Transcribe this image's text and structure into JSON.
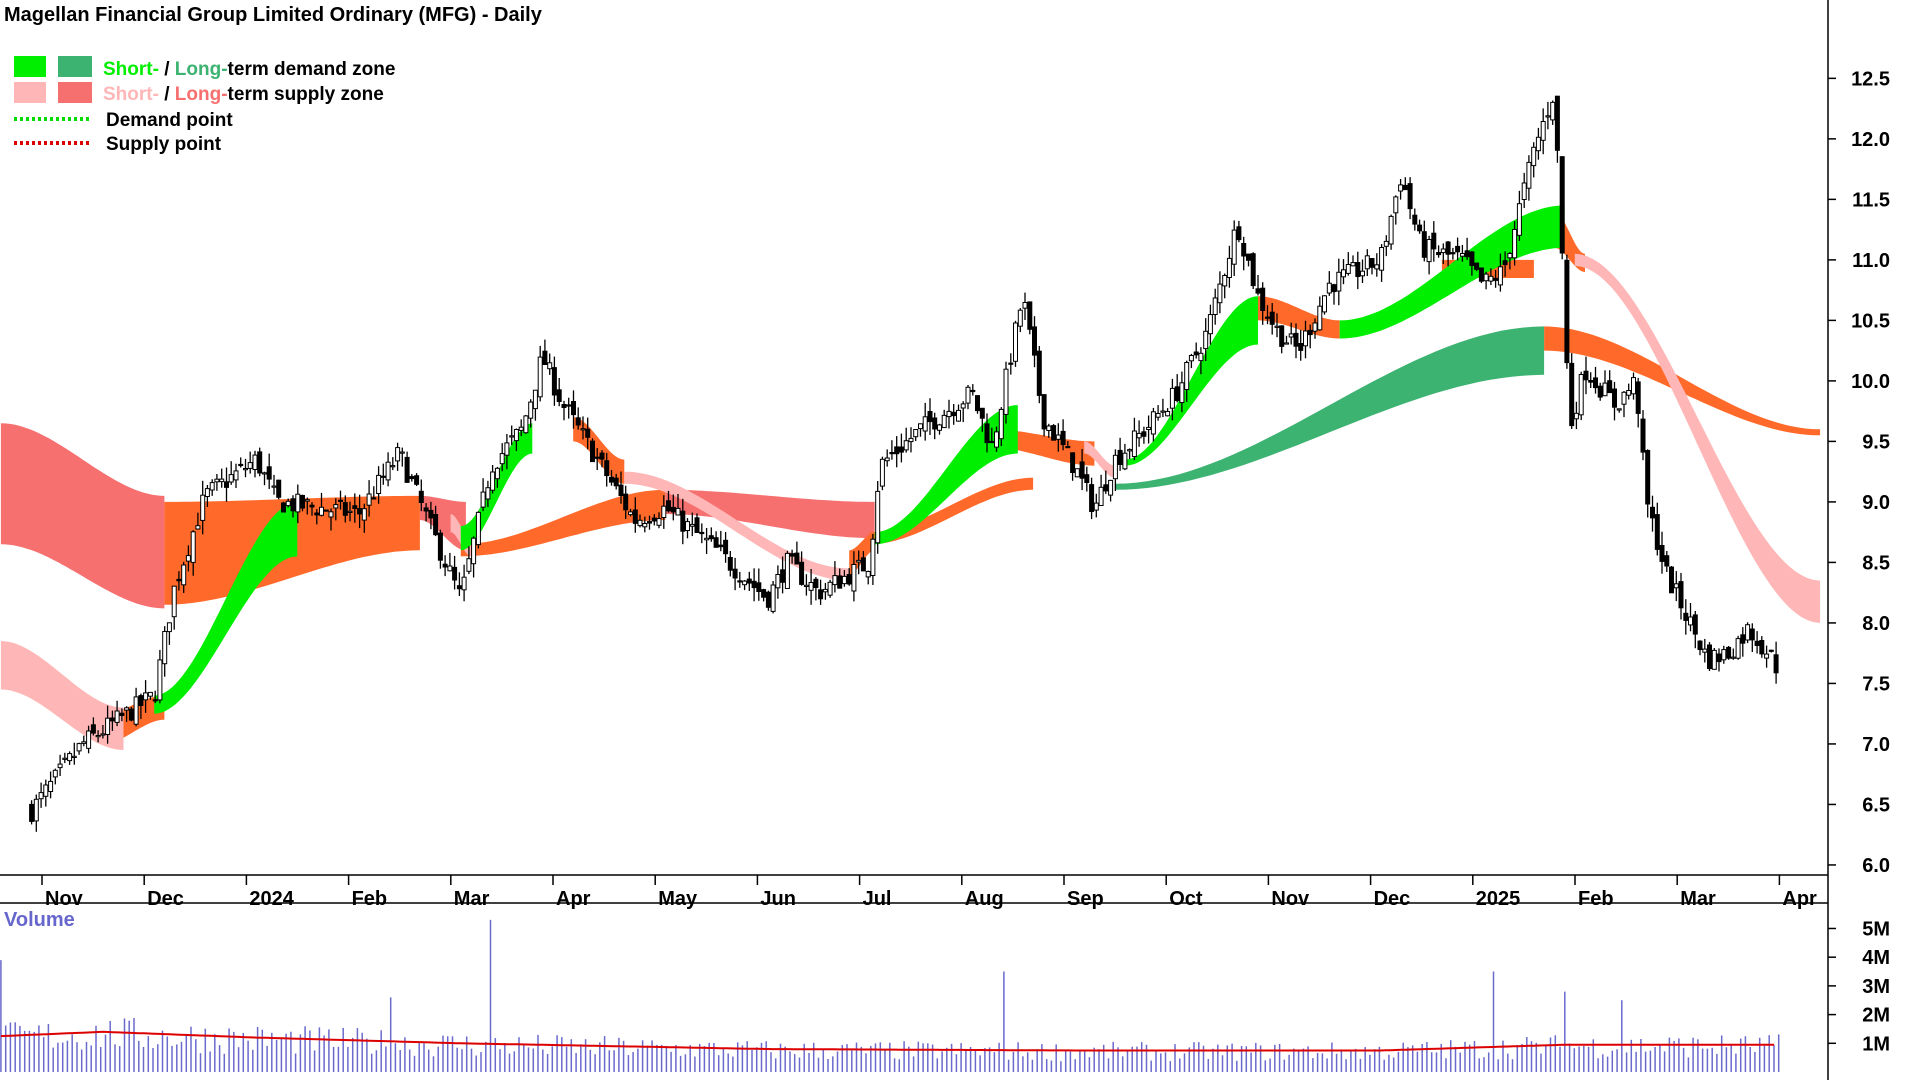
{
  "chart_data": {
    "type": "candlestick",
    "title": "Magellan Financial Group Limited Ordinary (MFG) - Daily",
    "legend": {
      "entries": [
        {
          "short_label": "Short-",
          "separator": " / ",
          "long_label": "Long-",
          "suffix": "term demand zone",
          "short_color": "#00ee00",
          "long_color": "#3cb371",
          "text_color": "#000000"
        },
        {
          "short_label": "Short-",
          "separator": " / ",
          "long_label": "Long-",
          "suffix": "term supply zone",
          "short_color": "#ffb6b6",
          "long_color": "#f77070",
          "text_color": "#000000"
        },
        {
          "label": "Demand point",
          "color": "#00dd00",
          "style": "dotted"
        },
        {
          "label": "Supply point",
          "color": "#dd0000",
          "style": "dotted"
        }
      ],
      "position": "top-left"
    },
    "price_axis": {
      "ticks": [
        "6.0",
        "6.5",
        "7.0",
        "7.5",
        "8.0",
        "8.5",
        "9.0",
        "9.5",
        "10.0",
        "10.5",
        "11.0",
        "11.5",
        "12.0",
        "12.5"
      ],
      "range": [
        5.95,
        12.85
      ],
      "side": "right"
    },
    "x_axis": {
      "labels": [
        "Nov",
        "Dec",
        "2024",
        "Feb",
        "Mar",
        "Apr",
        "May",
        "Jun",
        "Jul",
        "Aug",
        "Sep",
        "Oct",
        "Nov",
        "Dec",
        "2025",
        "Feb",
        "Mar",
        "Apr"
      ],
      "label_months_since_nov_2023": [
        0,
        1,
        2,
        3,
        4,
        5,
        6,
        7,
        8,
        9,
        10,
        11,
        12,
        13,
        14,
        15,
        16,
        17
      ]
    },
    "price_key_points": [
      {
        "month": -0.2,
        "close": 6.45
      },
      {
        "month": 0.3,
        "close": 7.0
      },
      {
        "month": 1.0,
        "close": 7.4
      },
      {
        "month": 1.2,
        "close": 8.3
      },
      {
        "month": 1.5,
        "close": 9.05
      },
      {
        "month": 2.0,
        "close": 9.35
      },
      {
        "month": 2.2,
        "close": 9.0
      },
      {
        "month": 3.0,
        "close": 8.9
      },
      {
        "month": 3.4,
        "close": 9.4
      },
      {
        "month": 3.8,
        "close": 8.6
      },
      {
        "month": 4.0,
        "close": 8.2
      },
      {
        "month": 4.3,
        "close": 9.3
      },
      {
        "month": 4.6,
        "close": 9.6
      },
      {
        "month": 4.8,
        "close": 10.2
      },
      {
        "month": 5.0,
        "close": 9.8
      },
      {
        "month": 5.3,
        "close": 9.4
      },
      {
        "month": 5.7,
        "close": 8.85
      },
      {
        "month": 6.0,
        "close": 8.95
      },
      {
        "month": 6.5,
        "close": 8.6
      },
      {
        "month": 7.0,
        "close": 8.2
      },
      {
        "month": 7.2,
        "close": 8.5
      },
      {
        "month": 7.5,
        "close": 8.25
      },
      {
        "month": 8.0,
        "close": 8.5
      },
      {
        "month": 8.1,
        "close": 9.3
      },
      {
        "month": 8.5,
        "close": 9.6
      },
      {
        "month": 9.0,
        "close": 9.9
      },
      {
        "month": 9.2,
        "close": 9.45
      },
      {
        "month": 9.5,
        "close": 10.7
      },
      {
        "month": 9.7,
        "close": 9.7
      },
      {
        "month": 10.0,
        "close": 9.3
      },
      {
        "month": 10.2,
        "close": 8.95
      },
      {
        "month": 10.4,
        "close": 9.35
      },
      {
        "month": 10.7,
        "close": 9.6
      },
      {
        "month": 11.0,
        "close": 9.9
      },
      {
        "month": 11.3,
        "close": 10.4
      },
      {
        "month": 11.6,
        "close": 11.3
      },
      {
        "month": 11.8,
        "close": 10.7
      },
      {
        "month": 12.0,
        "close": 10.4
      },
      {
        "month": 12.2,
        "close": 10.25
      },
      {
        "month": 12.5,
        "close": 10.8
      },
      {
        "month": 13.0,
        "close": 11.0
      },
      {
        "month": 13.2,
        "close": 11.7
      },
      {
        "month": 13.4,
        "close": 11.1
      },
      {
        "month": 13.8,
        "close": 11.0
      },
      {
        "month": 14.0,
        "close": 10.8
      },
      {
        "month": 14.2,
        "close": 10.9
      },
      {
        "month": 14.5,
        "close": 11.9
      },
      {
        "month": 14.7,
        "close": 12.4
      },
      {
        "month": 14.78,
        "close": 11.0
      },
      {
        "month": 14.85,
        "close": 9.6
      },
      {
        "month": 15.0,
        "close": 10.1
      },
      {
        "month": 15.3,
        "close": 9.8
      },
      {
        "month": 15.5,
        "close": 10.0
      },
      {
        "month": 15.6,
        "close": 9.0
      },
      {
        "month": 15.8,
        "close": 8.4
      },
      {
        "month": 16.0,
        "close": 8.05
      },
      {
        "month": 16.2,
        "close": 7.7
      },
      {
        "month": 16.4,
        "close": 7.75
      },
      {
        "month": 16.6,
        "close": 7.95
      },
      {
        "month": 16.8,
        "close": 7.75
      },
      {
        "month": 16.9,
        "close": 7.6
      }
    ],
    "zones": {
      "long_supply": [
        {
          "from": -0.5,
          "to": 1.1,
          "top": [
            9.65,
            9.05
          ],
          "bottom": [
            8.65,
            8.12
          ]
        },
        {
          "from": 3.6,
          "to": 4.05,
          "top": [
            9.05,
            9.0
          ],
          "bottom": [
            8.85,
            8.6
          ]
        },
        {
          "from": 6.0,
          "to": 8.05,
          "top": [
            9.1,
            9.0
          ],
          "bottom": [
            8.9,
            8.7
          ]
        }
      ],
      "short_supply": [
        {
          "from": -0.5,
          "to": 0.7,
          "top": [
            7.85,
            7.3
          ],
          "bottom": [
            7.45,
            6.95
          ]
        },
        {
          "from": 3.9,
          "to": 4.1,
          "top": [
            8.9,
            8.7
          ],
          "bottom": [
            8.75,
            8.55
          ]
        },
        {
          "from": 5.6,
          "to": 7.8,
          "top": [
            9.25,
            8.45
          ],
          "bottom": [
            9.15,
            8.35
          ]
        },
        {
          "from": 10.1,
          "to": 10.4,
          "top": [
            9.5,
            9.3
          ],
          "bottom": [
            9.4,
            9.2
          ]
        },
        {
          "from": 14.9,
          "to": 17.3,
          "top": [
            11.05,
            8.35
          ],
          "bottom": [
            10.95,
            8.0
          ]
        }
      ],
      "long_demand": [
        {
          "from": 10.4,
          "to": 14.6,
          "top": [
            9.15,
            10.45
          ],
          "bottom": [
            9.1,
            10.05
          ]
        }
      ],
      "short_demand": [
        {
          "from": 1.0,
          "to": 2.4,
          "top": [
            7.4,
            9.0
          ],
          "bottom": [
            7.25,
            8.55
          ]
        },
        {
          "from": 4.0,
          "to": 4.7,
          "top": [
            8.8,
            9.65
          ],
          "bottom": [
            8.6,
            9.4
          ]
        },
        {
          "from": 8.05,
          "to": 9.45,
          "top": [
            8.75,
            9.8
          ],
          "bottom": [
            8.65,
            9.4
          ]
        },
        {
          "from": 10.5,
          "to": 11.8,
          "top": [
            9.35,
            10.7
          ],
          "bottom": [
            9.3,
            10.3
          ]
        },
        {
          "from": 12.6,
          "to": 14.8,
          "top": [
            10.5,
            11.45
          ],
          "bottom": [
            10.35,
            11.1
          ]
        }
      ],
      "long_demand_or_supply_orange": [
        {
          "from": 0.5,
          "to": 1.1,
          "top": [
            7.25,
            7.4
          ],
          "bottom": [
            7.0,
            7.2
          ]
        },
        {
          "from": 1.1,
          "to": 3.6,
          "top": [
            9.0,
            9.05
          ],
          "bottom": [
            8.15,
            8.6
          ]
        },
        {
          "from": 4.0,
          "to": 6.0,
          "top": [
            8.65,
            9.1
          ],
          "bottom": [
            8.55,
            8.85
          ]
        },
        {
          "from": 5.1,
          "to": 5.6,
          "top": [
            9.7,
            9.35
          ],
          "bottom": [
            9.5,
            9.15
          ]
        },
        {
          "from": 7.8,
          "to": 8.05,
          "top": [
            8.6,
            8.75
          ],
          "bottom": [
            8.4,
            8.6
          ]
        },
        {
          "from": 8.0,
          "to": 9.6,
          "top": [
            8.75,
            9.2
          ],
          "bottom": [
            8.65,
            9.1
          ]
        },
        {
          "from": 9.2,
          "to": 10.2,
          "top": [
            9.6,
            9.5
          ],
          "bottom": [
            9.45,
            9.3
          ]
        },
        {
          "from": 11.8,
          "to": 12.6,
          "top": [
            10.7,
            10.5
          ],
          "bottom": [
            10.5,
            10.35
          ]
        },
        {
          "from": 13.6,
          "to": 14.5,
          "top": [
            11.0,
            11.0
          ],
          "bottom": [
            10.85,
            10.85
          ]
        },
        {
          "from": 14.7,
          "to": 15.0,
          "top": [
            11.4,
            11.05
          ],
          "bottom": [
            11.1,
            10.9
          ]
        },
        {
          "from": 14.6,
          "to": 17.3,
          "top": [
            10.45,
            9.6
          ],
          "bottom": [
            10.25,
            9.55
          ]
        }
      ]
    },
    "volume_panel": {
      "title": "Volume",
      "title_color": "#6666cc",
      "ticks": [
        "1M",
        "2M",
        "3M",
        "4M",
        "5M"
      ],
      "range": [
        0,
        5.4
      ],
      "bar_color": "#6a6acd",
      "ma_color": "#dd0000",
      "spikes_M": [
        {
          "month": -0.48,
          "value": 3.9
        },
        {
          "month": 3.3,
          "value": 2.6
        },
        {
          "month": 4.3,
          "value": 5.3
        },
        {
          "month": 9.3,
          "value": 3.5
        },
        {
          "month": 14.1,
          "value": 3.5
        },
        {
          "month": 14.8,
          "value": 2.8
        },
        {
          "month": 15.35,
          "value": 2.5
        }
      ],
      "ma_key_points": [
        {
          "month": -0.5,
          "value": 1.25
        },
        {
          "month": 0.5,
          "value": 1.4
        },
        {
          "month": 2.0,
          "value": 1.2
        },
        {
          "month": 4.0,
          "value": 1.0
        },
        {
          "month": 7.0,
          "value": 0.8
        },
        {
          "month": 10.0,
          "value": 0.75
        },
        {
          "month": 13.0,
          "value": 0.75
        },
        {
          "month": 14.8,
          "value": 0.95
        },
        {
          "month": 17.0,
          "value": 0.95
        }
      ]
    },
    "colors": {
      "candle_up_fill": "#ffffff",
      "candle_down_fill": "#000000",
      "candle_outline": "#000000",
      "long_supply": "#f77070",
      "short_supply": "#ffb6b6",
      "long_demand": "#3cb371",
      "short_demand": "#00ee00",
      "orange_zone": "#ff6a2b"
    }
  }
}
